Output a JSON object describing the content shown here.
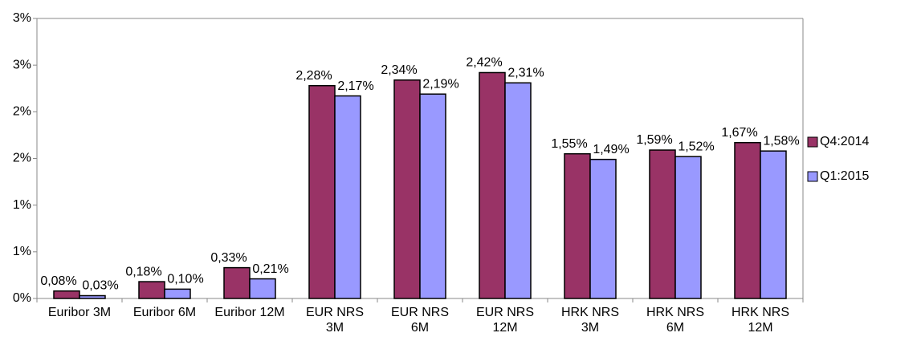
{
  "chart_data": {
    "type": "bar",
    "categories": [
      "Euribor 3M",
      "Euribor 6M",
      "Euribor 12M",
      "EUR NRS 3M",
      "EUR NRS 6M",
      "EUR NRS 12M",
      "HRK NRS 3M",
      "HRK NRS 6M",
      "HRK NRS 12M"
    ],
    "series": [
      {
        "name": "Q4:2014",
        "color": "#993366",
        "values": [
          0.08,
          0.18,
          0.33,
          2.28,
          2.34,
          2.42,
          1.55,
          1.59,
          1.67
        ],
        "value_labels": [
          "0,08%",
          "0,18%",
          "0,33%",
          "2,28%",
          "2,34%",
          "2,42%",
          "1,55%",
          "1,59%",
          "1,67%"
        ]
      },
      {
        "name": "Q1:2015",
        "color": "#9999ff",
        "values": [
          0.03,
          0.1,
          0.21,
          2.17,
          2.19,
          2.31,
          1.49,
          1.52,
          1.58
        ],
        "value_labels": [
          "0,03%",
          "0,10%",
          "0,21%",
          "2,17%",
          "2,19%",
          "2,31%",
          "1,49%",
          "1,52%",
          "1,58%"
        ]
      }
    ],
    "ylim": [
      0,
      3
    ],
    "yticks": [
      {
        "value": 0,
        "label": "0%"
      },
      {
        "value": 0.5,
        "label": "1%"
      },
      {
        "value": 1,
        "label": "1%"
      },
      {
        "value": 1.5,
        "label": "2%"
      },
      {
        "value": 2,
        "label": "2%"
      },
      {
        "value": 2.5,
        "label": "3%"
      },
      {
        "value": 3,
        "label": "3%"
      }
    ],
    "legend": "right"
  }
}
